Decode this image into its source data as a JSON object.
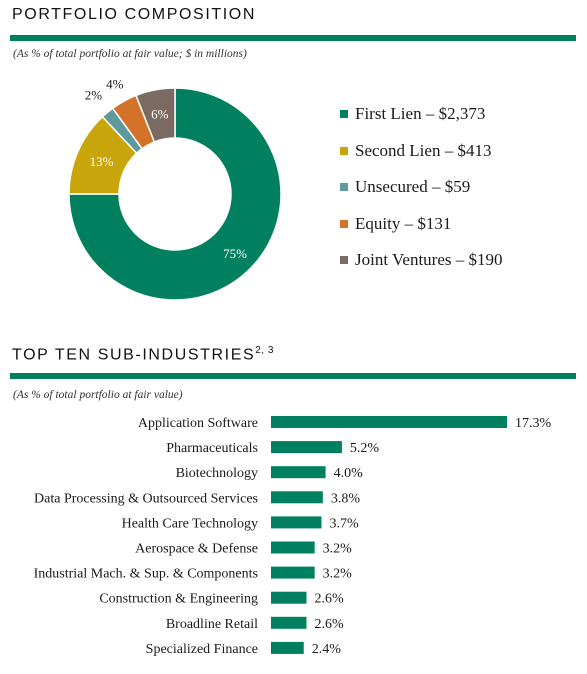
{
  "colors": {
    "brand_green": "#00805e",
    "first_lien": "#00805e",
    "second_lien": "#c9a50c",
    "unsecured": "#5e9a9c",
    "equity": "#d4722a",
    "joint_ventures": "#7b6a62"
  },
  "portfolio": {
    "title": "PORTFOLIO COMPOSITION",
    "subtitle": "(As % of total portfolio at fair value; $ in millions)"
  },
  "industries": {
    "title": "TOP TEN SUB-INDUSTRIES",
    "title_footnote": "2, 3",
    "subtitle": "(As % of total portfolio at fair value)"
  },
  "chart_data": [
    {
      "type": "pie",
      "donut": true,
      "title": "PORTFOLIO COMPOSITION",
      "categories": [
        "First Lien",
        "Second Lien",
        "Unsecured",
        "Equity",
        "Joint Ventures"
      ],
      "values": [
        75,
        13,
        2,
        4,
        6
      ],
      "value_labels": [
        "75%",
        "13%",
        "2%",
        "4%",
        "6%"
      ],
      "legend_labels": [
        "First Lien – $2,373",
        "Second Lien – $413",
        "Unsecured – $59",
        "Equity – $131",
        "Joint Ventures – $190"
      ],
      "amounts_millions": [
        2373,
        413,
        59,
        131,
        190
      ],
      "colors": [
        "#00805e",
        "#c9a50c",
        "#5e9a9c",
        "#d4722a",
        "#7b6a62"
      ],
      "legend_position": "right"
    },
    {
      "type": "bar",
      "orientation": "horizontal",
      "title": "TOP TEN SUB-INDUSTRIES",
      "categories": [
        "Application Software",
        "Pharmaceuticals",
        "Biotechnology",
        "Data Processing & Outsourced Services",
        "Health Care Technology",
        "Aerospace & Defense",
        "Industrial Mach. & Sup. & Components",
        "Construction & Engineering",
        "Broadline Retail",
        "Specialized Finance"
      ],
      "values": [
        17.3,
        5.2,
        4.0,
        3.8,
        3.7,
        3.2,
        3.2,
        2.6,
        2.6,
        2.4
      ],
      "value_labels": [
        "17.3%",
        "5.2%",
        "4.0%",
        "3.8%",
        "3.7%",
        "3.2%",
        "3.2%",
        "2.6%",
        "2.6%",
        "2.4%"
      ],
      "color": "#00805e",
      "xlim": [
        0,
        17.3
      ],
      "grid": false
    }
  ]
}
